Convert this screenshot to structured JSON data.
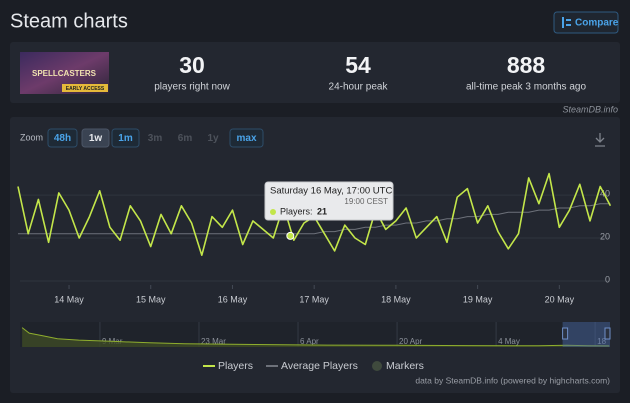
{
  "header": {
    "title": "Steam charts",
    "compare": "Compare"
  },
  "game": {
    "logo_text": "SPELLCASTERS",
    "badge": "EARLY ACCESS"
  },
  "stats": [
    {
      "value": 30,
      "label": "players right now"
    },
    {
      "value": 54,
      "label": "24-hour peak"
    },
    {
      "value": 888,
      "label": "all-time peak 3 months ago"
    }
  ],
  "source": "SteamDB.info",
  "zoom": {
    "label": "Zoom",
    "options": [
      "48h",
      "1w",
      "1m",
      "3m",
      "6m",
      "1y",
      "max"
    ]
  },
  "chart_data": {
    "type": "line",
    "x": [
      13.375,
      13.5,
      13.625,
      13.75,
      13.875,
      14,
      14.125,
      14.25,
      14.375,
      14.5,
      14.625,
      14.75,
      14.875,
      15,
      15.125,
      15.25,
      15.375,
      15.5,
      15.625,
      15.75,
      15.875,
      16,
      16.125,
      16.25,
      16.375,
      16.5,
      16.625,
      16.75,
      16.875,
      17,
      17.125,
      17.25,
      17.375,
      17.5,
      17.625,
      17.75,
      17.875,
      18,
      18.125,
      18.25,
      18.375,
      18.5,
      18.625,
      18.75,
      18.875,
      19,
      19.125,
      19.25,
      19.375,
      19.5,
      19.625,
      19.75,
      19.875,
      20,
      20.125,
      20.25,
      20.375,
      20.5,
      20.625
    ],
    "series": [
      {
        "name": "Players",
        "color": "#c3e64a",
        "values": [
          44,
          22,
          38,
          18,
          41,
          33,
          20,
          30,
          42,
          25,
          19,
          35,
          28,
          16,
          31,
          22,
          35,
          27,
          12,
          30,
          25,
          33,
          17,
          28,
          24,
          20,
          35,
          19,
          27,
          30,
          22,
          14,
          26,
          20,
          17,
          33,
          24,
          28,
          34,
          20,
          25,
          30,
          18,
          39,
          43,
          27,
          35,
          23,
          15,
          22,
          48,
          36,
          50,
          25,
          33,
          45,
          28,
          44,
          35
        ]
      },
      {
        "name": "Average Players",
        "color": "#6d717a",
        "values": [
          22,
          22,
          22,
          22,
          22,
          22,
          22,
          22,
          22,
          22,
          22,
          22,
          22,
          22,
          22,
          22,
          22,
          22,
          22,
          22,
          22,
          22,
          22,
          22,
          22,
          22,
          22,
          22,
          22,
          22,
          23,
          23,
          24,
          24,
          25,
          25,
          26,
          26,
          27,
          27,
          28,
          28,
          29,
          29,
          30,
          30,
          31,
          31,
          32,
          32,
          32,
          33,
          33,
          34,
          34,
          35,
          35,
          36,
          36
        ]
      }
    ],
    "markers": {
      "name": "Markers",
      "color": "#3f4a3d"
    },
    "xlim": [
      13.4,
      20.62
    ],
    "xticks": [
      {
        "value": 14,
        "label": "14 May"
      },
      {
        "value": 15,
        "label": "15 May"
      },
      {
        "value": 16,
        "label": "16 May"
      },
      {
        "value": 17,
        "label": "17 May"
      },
      {
        "value": 18,
        "label": "18 May"
      },
      {
        "value": 19,
        "label": "19 May"
      },
      {
        "value": 20,
        "label": "20 May"
      }
    ],
    "ylim": [
      0,
      54
    ],
    "yticks": [
      0,
      20,
      40
    ],
    "grid": true,
    "tooltip": {
      "title": "Saturday 16 May, 17:00 UTC",
      "subtitle": "19:00 CEST",
      "label": "Players:",
      "x": 16.708,
      "value": 21
    },
    "navigator": {
      "x": [
        57,
        58,
        60,
        62,
        65,
        70,
        75,
        80,
        90,
        100,
        110,
        120,
        130,
        134,
        137,
        140
      ],
      "values": [
        700,
        500,
        400,
        300,
        250,
        200,
        150,
        120,
        90,
        70,
        60,
        50,
        45,
        60,
        45,
        40
      ],
      "xlim": [
        56.7,
        140.1
      ],
      "ylim": [
        0,
        900
      ],
      "xticks": [
        {
          "value": 68,
          "label": "9 Mar"
        },
        {
          "value": 82,
          "label": "23 Mar"
        },
        {
          "value": 96,
          "label": "6 Apr"
        },
        {
          "value": 110,
          "label": "20 Apr"
        },
        {
          "value": 124,
          "label": "4 May"
        },
        {
          "value": 138,
          "label": "18"
        }
      ],
      "range": [
        133.4,
        140.1
      ]
    },
    "credits": "data by SteamDB.info (powered by highcharts.com)"
  }
}
